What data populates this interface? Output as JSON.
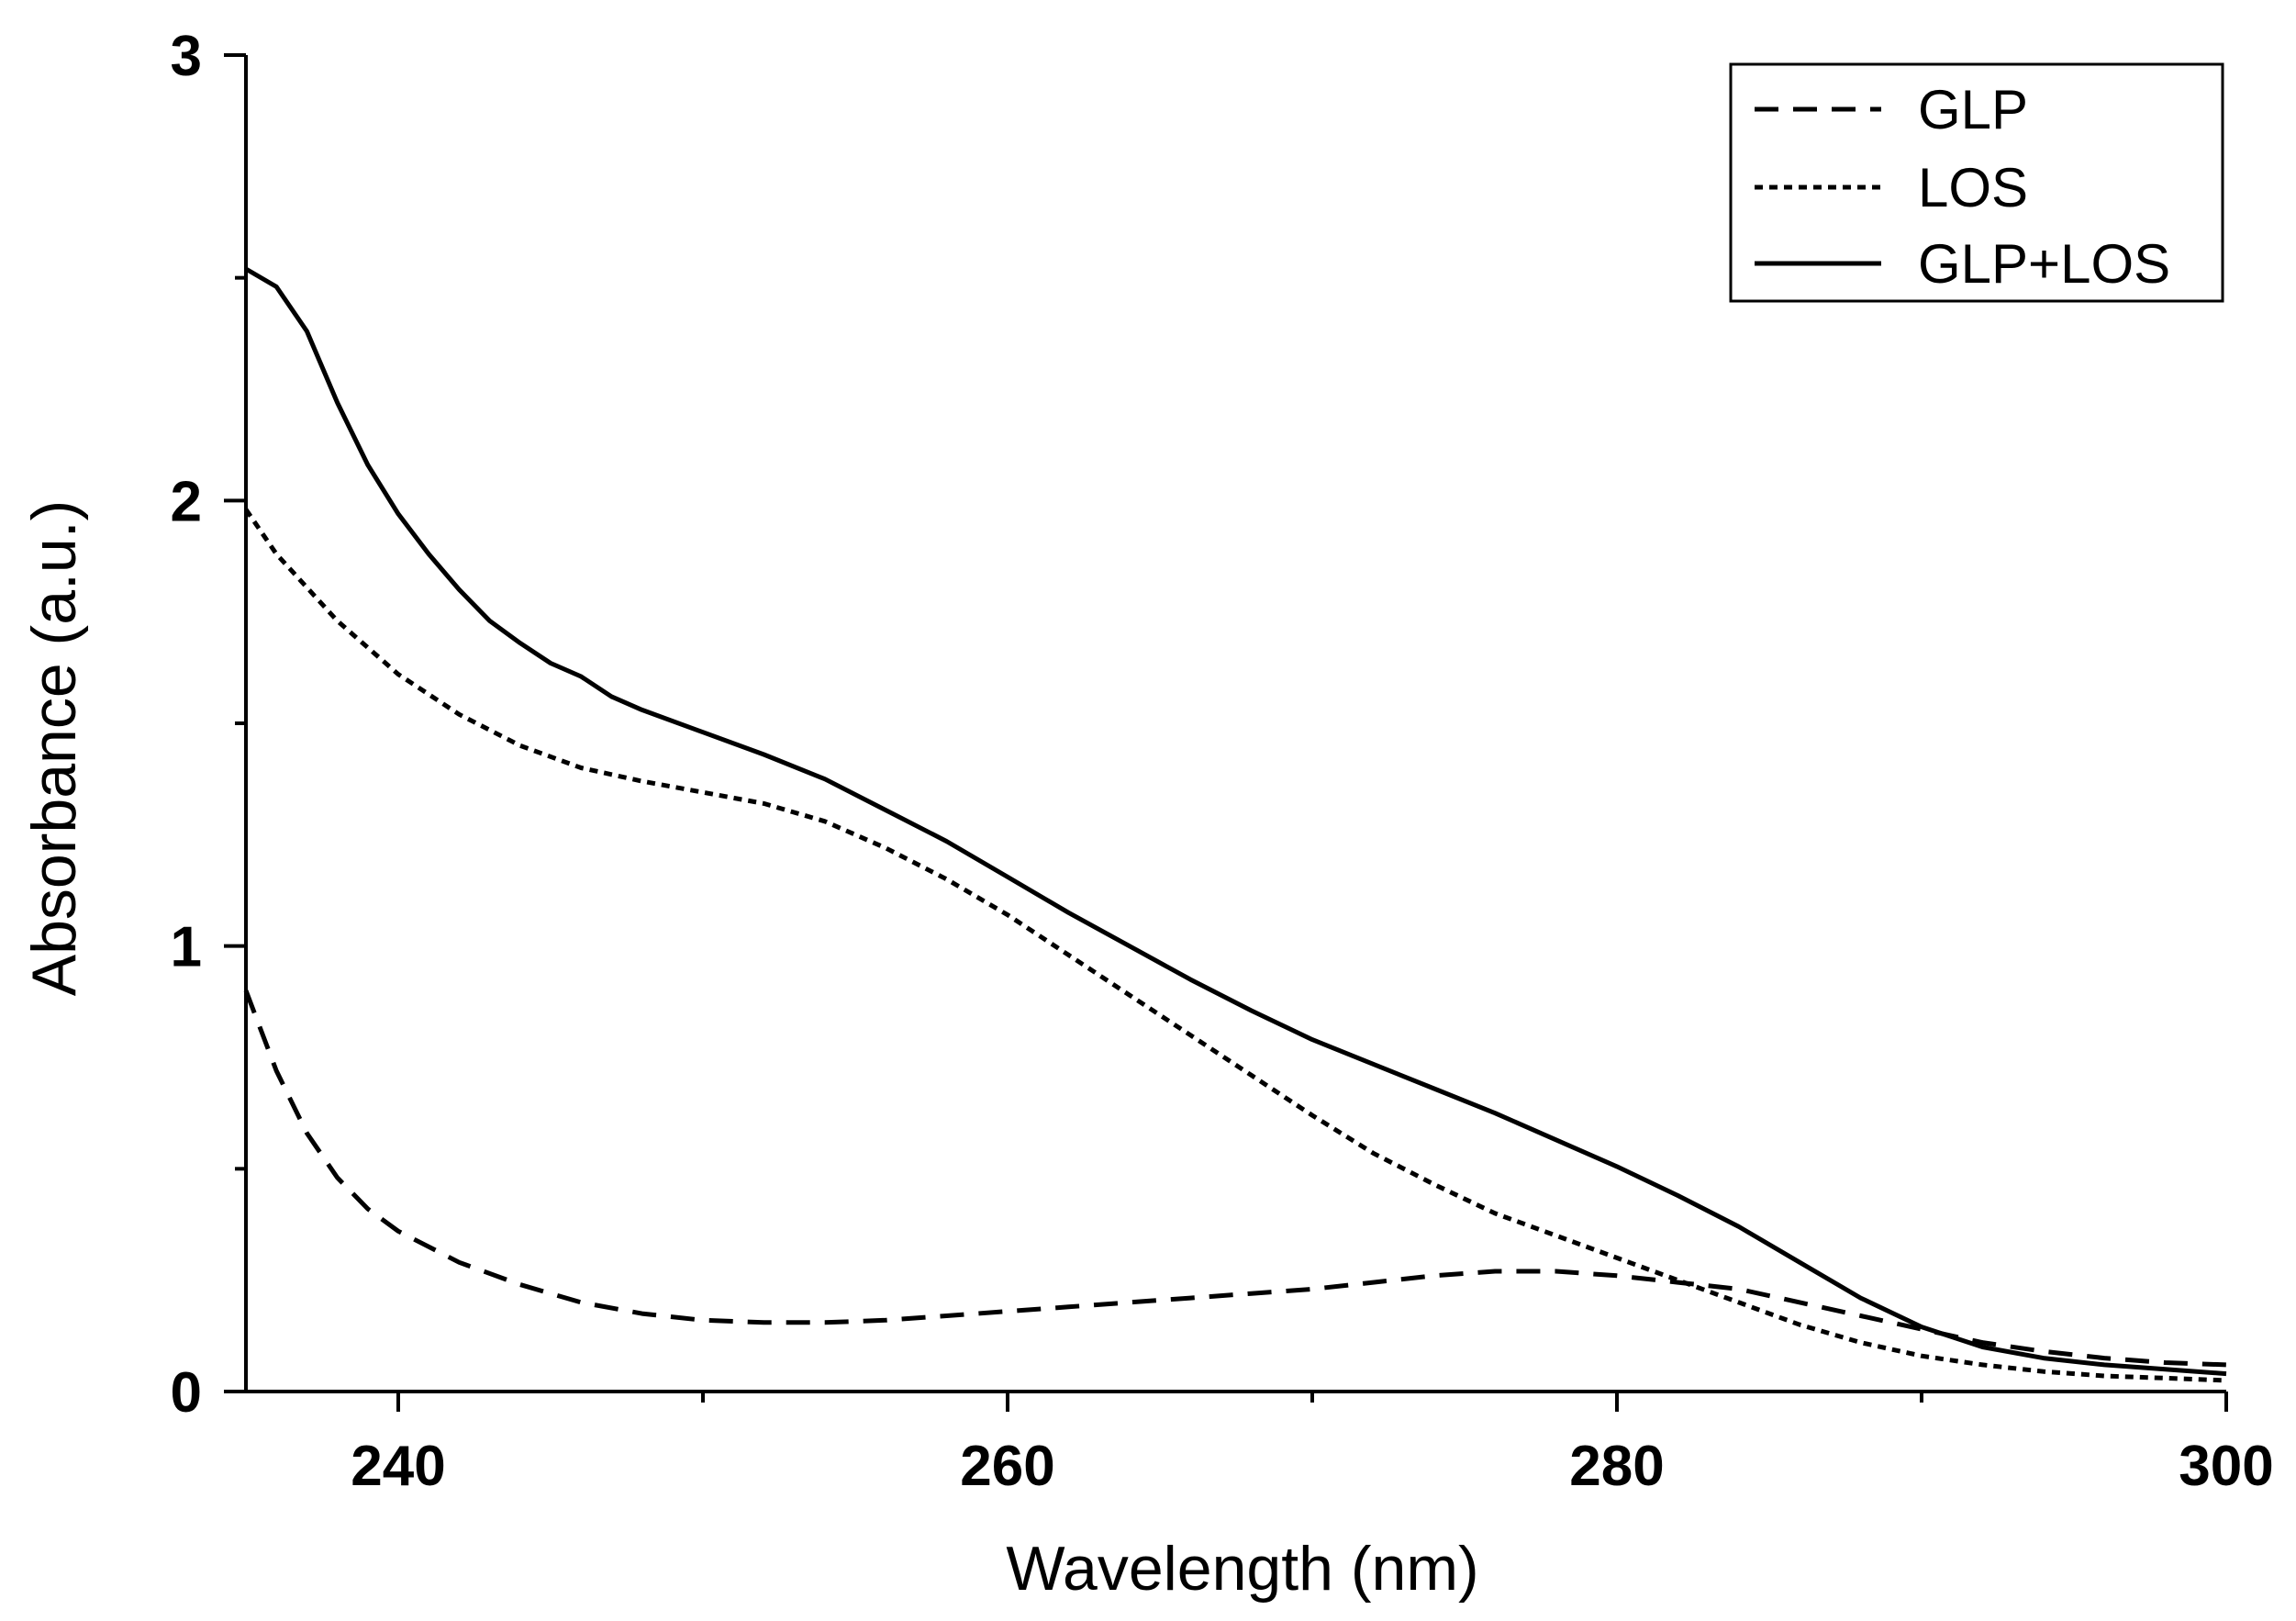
{
  "chart_data": {
    "type": "line",
    "xlabel": "Wavelength (nm)",
    "ylabel": "Absorbance (a.u.)",
    "xlim": [
      235,
      300
    ],
    "ylim": [
      0,
      3
    ],
    "x_ticks": [
      "240",
      "260",
      "280",
      "300"
    ],
    "y_ticks": [
      "0",
      "1",
      "2",
      "3"
    ],
    "x_minor_ticks": [
      250,
      270,
      290
    ],
    "y_minor_ticks": [
      0.5,
      1.5,
      2.5
    ],
    "grid": false,
    "legend": "top-right",
    "series": [
      {
        "name": "GLP",
        "style": "dashed",
        "color": "#000000",
        "x": [
          235,
          236,
          237,
          238,
          239,
          240,
          242,
          244,
          246,
          248,
          250,
          252,
          254,
          256,
          258,
          260,
          262,
          264,
          266,
          268,
          270,
          272,
          274,
          276,
          278,
          280,
          282,
          284,
          286,
          288,
          290,
          292,
          294,
          296,
          298,
          300
        ],
        "y": [
          0.9,
          0.72,
          0.58,
          0.48,
          0.41,
          0.36,
          0.29,
          0.24,
          0.2,
          0.175,
          0.16,
          0.155,
          0.155,
          0.16,
          0.17,
          0.18,
          0.19,
          0.2,
          0.21,
          0.22,
          0.23,
          0.245,
          0.26,
          0.27,
          0.27,
          0.26,
          0.245,
          0.23,
          0.2,
          0.17,
          0.14,
          0.11,
          0.09,
          0.075,
          0.065,
          0.06
        ]
      },
      {
        "name": "LOS",
        "style": "dotted",
        "color": "#000000",
        "x": [
          235,
          236,
          238,
          240,
          242,
          244,
          246,
          248,
          250,
          252,
          254,
          256,
          258,
          260,
          262,
          264,
          266,
          268,
          270,
          272,
          274,
          276,
          278,
          280,
          282,
          284,
          286,
          288,
          290,
          292,
          294,
          296,
          298,
          300
        ],
        "y": [
          1.98,
          1.88,
          1.73,
          1.61,
          1.52,
          1.45,
          1.4,
          1.37,
          1.345,
          1.32,
          1.28,
          1.22,
          1.15,
          1.07,
          0.98,
          0.89,
          0.8,
          0.71,
          0.62,
          0.535,
          0.465,
          0.4,
          0.35,
          0.3,
          0.25,
          0.2,
          0.15,
          0.11,
          0.08,
          0.06,
          0.045,
          0.035,
          0.03,
          0.025
        ]
      },
      {
        "name": "GLP+LOS",
        "style": "solid",
        "color": "#000000",
        "x": [
          235,
          236,
          237,
          238,
          239,
          240,
          241,
          242,
          243,
          244,
          245,
          246,
          247,
          248,
          250,
          252,
          254,
          256,
          258,
          260,
          262,
          264,
          266,
          268,
          270,
          272,
          274,
          276,
          278,
          280,
          282,
          284,
          286,
          288,
          290,
          292,
          294,
          296,
          298,
          300
        ],
        "y": [
          2.52,
          2.48,
          2.38,
          2.22,
          2.08,
          1.97,
          1.88,
          1.8,
          1.73,
          1.68,
          1.635,
          1.605,
          1.56,
          1.53,
          1.48,
          1.43,
          1.375,
          1.305,
          1.235,
          1.155,
          1.075,
          1.0,
          0.925,
          0.855,
          0.79,
          0.735,
          0.68,
          0.625,
          0.565,
          0.505,
          0.44,
          0.37,
          0.29,
          0.21,
          0.145,
          0.1,
          0.075,
          0.06,
          0.05,
          0.04
        ]
      }
    ]
  }
}
